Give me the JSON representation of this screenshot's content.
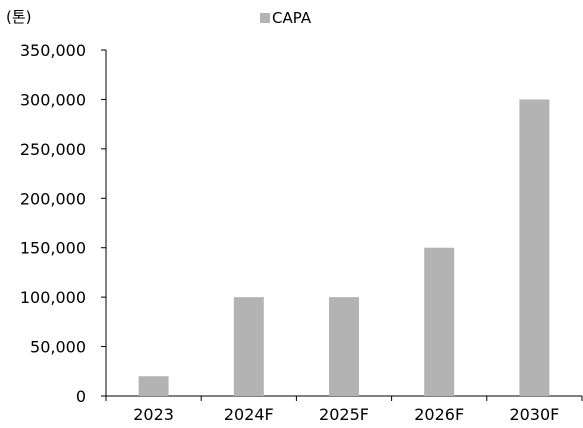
{
  "chart_data": {
    "type": "bar",
    "unit_label": "(톤)",
    "title": "",
    "xlabel": "",
    "ylabel": "",
    "categories": [
      "2023",
      "2024F",
      "2025F",
      "2026F",
      "2030F"
    ],
    "series": [
      {
        "name": "CAPA",
        "values": [
          20000,
          100000,
          100000,
          150000,
          300000
        ]
      }
    ],
    "ylim": [
      0,
      350000
    ],
    "y_ticks": [
      0,
      50000,
      100000,
      150000,
      200000,
      250000,
      300000,
      350000
    ],
    "y_tick_labels": [
      "0",
      "50,000",
      "100,000",
      "150,000",
      "200,000",
      "250,000",
      "300,000",
      "350,000"
    ],
    "legend_position": "top-center",
    "grid": false,
    "colors": {
      "bar": "#b3b3b3",
      "axis": "#000000"
    }
  }
}
